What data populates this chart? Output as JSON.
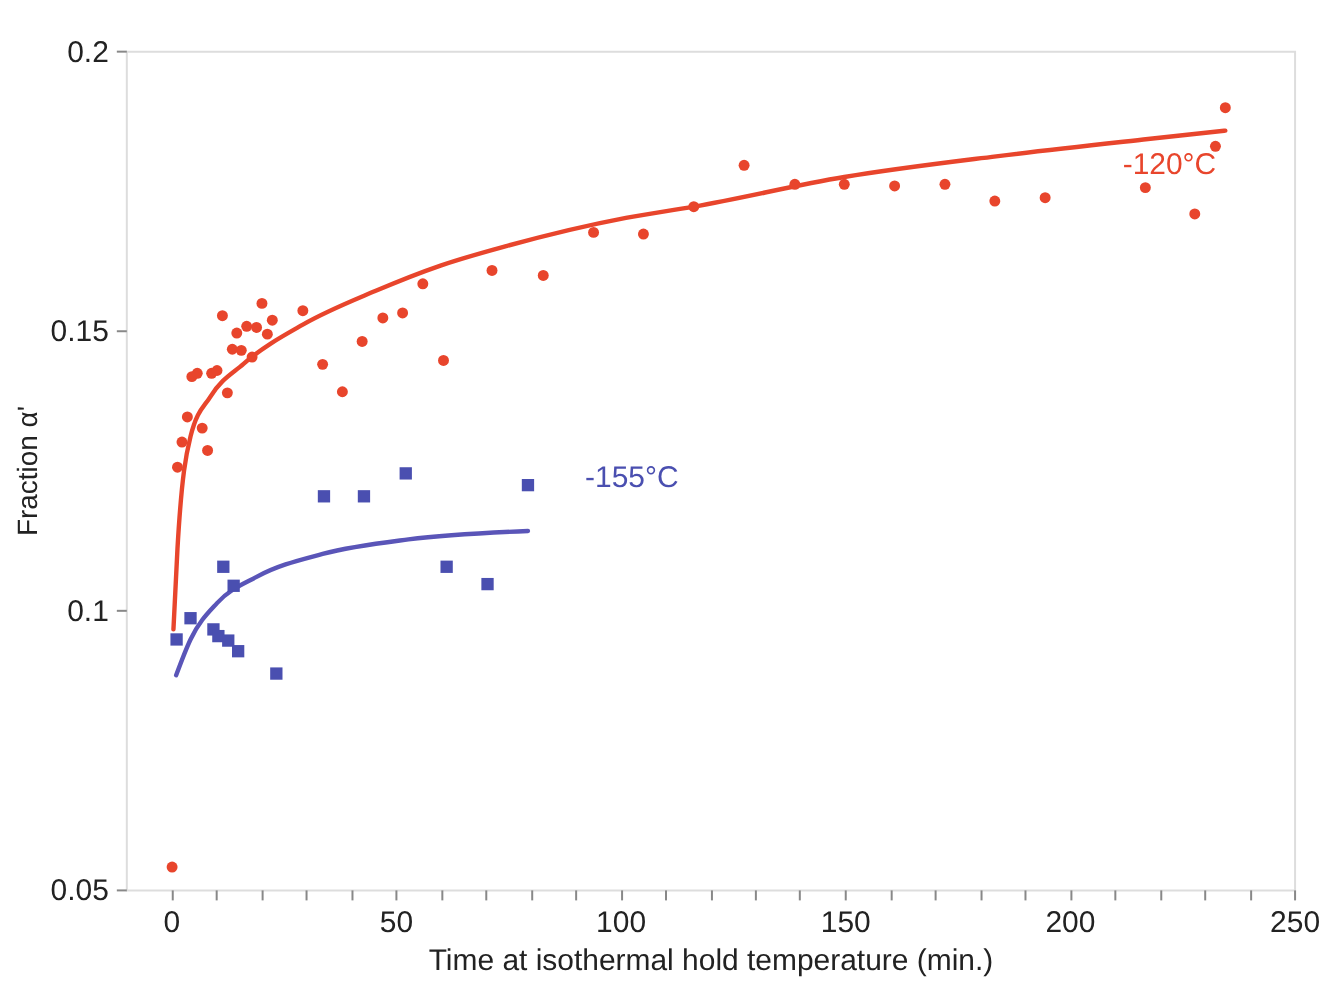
{
  "chart_data": {
    "type": "scatter",
    "xlabel": "Time at isothermal hold temperature (min.)",
    "ylabel": "Fraction α'",
    "xlim": [
      -10,
      250
    ],
    "ylim": [
      0.05,
      0.2
    ],
    "xticks": [
      0,
      {
        "value": 10,
        "label": null
      },
      {
        "value": 20,
        "label": null
      },
      {
        "value": 30,
        "label": null
      },
      {
        "value": 40,
        "label": null
      },
      50,
      {
        "value": 60,
        "label": null
      },
      {
        "value": 70,
        "label": null
      },
      {
        "value": 80,
        "label": null
      },
      {
        "value": 90,
        "label": null
      },
      100,
      {
        "value": 110,
        "label": null
      },
      {
        "value": 120,
        "label": null
      },
      {
        "value": 130,
        "label": null
      },
      {
        "value": 140,
        "label": null
      },
      150,
      {
        "value": 160,
        "label": null
      },
      {
        "value": 170,
        "label": null
      },
      {
        "value": 180,
        "label": null
      },
      {
        "value": 190,
        "label": null
      },
      200,
      {
        "value": 210,
        "label": null
      },
      {
        "value": 220,
        "label": null
      },
      {
        "value": 230,
        "label": null
      },
      {
        "value": 240,
        "label": null
      },
      250
    ],
    "yticks": [
      0.05,
      0.1,
      0.15,
      0.2
    ],
    "grid": false,
    "series": [
      {
        "name": "-120°C",
        "marker": "circle",
        "color": "#e8452c",
        "x": [
          0.3,
          1.5,
          2.5,
          3.7,
          4.7,
          5.9,
          7,
          8.2,
          9.1,
          10.3,
          11.5,
          12.6,
          13.7,
          14.7,
          15.7,
          16.9,
          18.1,
          19.1,
          20.3,
          21.5,
          22.6,
          29.4,
          33.8,
          38.2,
          42.6,
          47.2,
          51.6,
          56.1,
          60.7,
          71.5,
          82.9,
          94.1,
          105.2,
          116.4,
          127.6,
          138.9,
          149.9,
          161.1,
          172.3,
          183.4,
          194.6,
          216.9,
          227.9,
          232.5,
          234.7
        ],
        "values": [
          0.054,
          0.1255,
          0.13,
          0.1345,
          0.1417,
          0.1423,
          0.1325,
          0.1285,
          0.1423,
          0.1428,
          0.1526,
          0.1388,
          0.1466,
          0.1495,
          0.1464,
          0.1507,
          0.1452,
          0.1505,
          0.1548,
          0.1493,
          0.1518,
          0.1535,
          0.1439,
          0.139,
          0.148,
          0.1522,
          0.1531,
          0.1583,
          0.1446,
          0.1607,
          0.1598,
          0.1675,
          0.1672,
          0.1721,
          0.1795,
          0.1761,
          0.1761,
          0.1758,
          0.1761,
          0.1731,
          0.1737,
          0.1755,
          0.1708,
          0.1829,
          0.1898
        ]
      },
      {
        "name": "-155°C",
        "marker": "square",
        "color": "#4a4fb0",
        "x": [
          1.3,
          4.4,
          9.5,
          10.6,
          11.7,
          12.8,
          14,
          15,
          23.5,
          34.1,
          43,
          52.3,
          61.4,
          70.5,
          79.5
        ],
        "values": [
          0.0947,
          0.0985,
          0.0965,
          0.0953,
          0.1077,
          0.0945,
          0.1043,
          0.0926,
          0.0886,
          0.1203,
          0.1203,
          0.1244,
          0.1077,
          0.1046,
          0.1223
        ]
      },
      {
        "type": "line",
        "marker": "none",
        "line_style": "solid",
        "color": "#e8452c",
        "x": [
          0.6,
          1.5,
          4.4,
          8.8,
          16.2,
          29.4,
          45.5,
          60.2,
          74.9,
          101.3,
          116.4,
          149.9,
          183.7,
          217.5,
          234.7
        ],
        "values": [
          0.0965,
          0.111,
          0.131,
          0.1381,
          0.144,
          0.151,
          0.157,
          0.1616,
          0.1651,
          0.1701,
          0.1721,
          0.1774,
          0.1811,
          0.1842,
          0.1857
        ]
      },
      {
        "type": "line",
        "marker": "none",
        "line_style": "solid",
        "color": "#5a55b8",
        "x": [
          1.2,
          4.4,
          10.3,
          19.1,
          33.8,
          52.9,
          79.5
        ],
        "values": [
          0.0883,
          0.0947,
          0.1012,
          0.1059,
          0.11,
          0.1126,
          0.1141
        ]
      }
    ]
  }
}
